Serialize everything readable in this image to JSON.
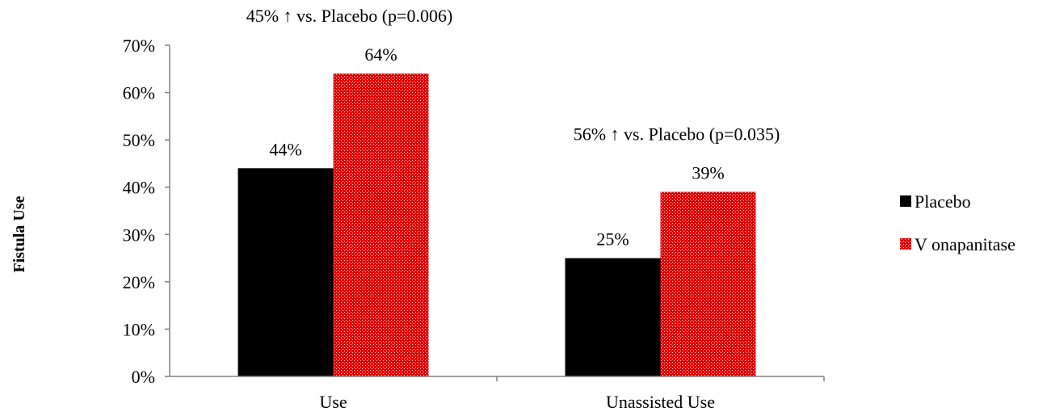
{
  "chart_data": {
    "type": "bar",
    "categories": [
      "Use",
      "Unassisted Use"
    ],
    "series": [
      {
        "name": "Placebo",
        "values": [
          44,
          25
        ],
        "labels": [
          "44%",
          "25%"
        ],
        "color": "#000000"
      },
      {
        "name": "Vonapanitase",
        "values": [
          64,
          39
        ],
        "labels": [
          "64%",
          "39%"
        ],
        "color": "#e00000",
        "pattern": "dotted"
      }
    ],
    "ylabel": "Fistula Use",
    "ylim": [
      0,
      70
    ],
    "yticks": [
      "0%",
      "10%",
      "20%",
      "30%",
      "40%",
      "50%",
      "60%",
      "70%"
    ],
    "annotations": [
      {
        "category": "Use",
        "text": "45% ↑ vs. Placebo (p=0.006)"
      },
      {
        "category": "Unassisted Use",
        "text": "56% ↑ vs. Placebo (p=0.035)"
      }
    ],
    "legend": {
      "placement": "right",
      "entries": [
        "Placebo",
        "V onapanitase"
      ]
    },
    "grid": false
  }
}
